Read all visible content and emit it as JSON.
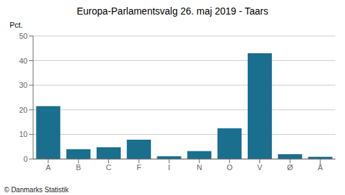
{
  "chart_data": {
    "type": "bar",
    "title": "Europa-Parlamentsvalg 26. maj 2019 - Taars",
    "ylabel": "Pct.",
    "annotations": [
      "© Danmarks Statistik"
    ],
    "categories": [
      "A",
      "B",
      "C",
      "F",
      "I",
      "N",
      "O",
      "V",
      "Ø",
      "Å"
    ],
    "values": [
      21.5,
      4.0,
      4.8,
      7.9,
      1.1,
      3.2,
      12.5,
      43.0,
      2.0,
      0.9
    ],
    "color": "#1a6e8e",
    "ylim": [
      0,
      50
    ],
    "yticks": [
      0,
      10,
      20,
      30,
      40,
      50
    ],
    "grid": true
  }
}
